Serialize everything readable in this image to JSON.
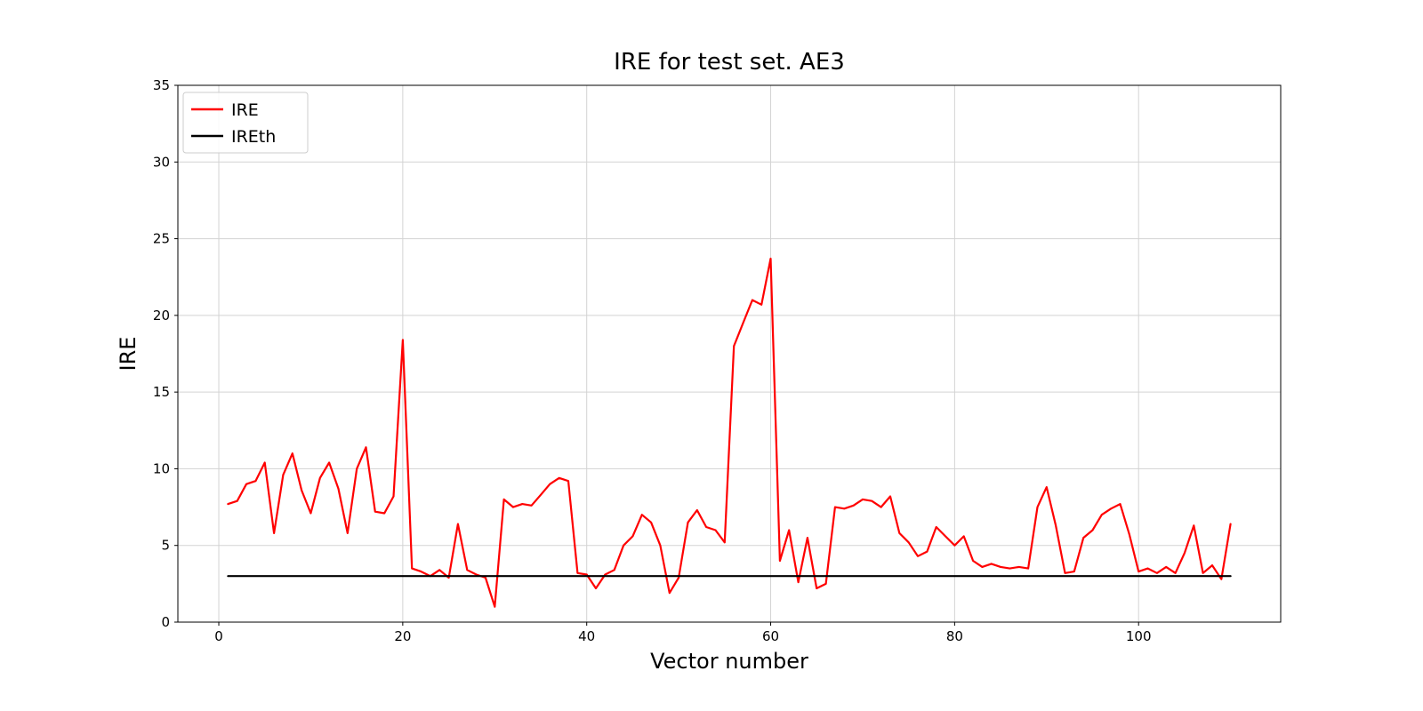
{
  "figure": {
    "background": "#ffffff"
  },
  "chart_data": {
    "type": "line",
    "title": "IRE for test set. AE3",
    "xlabel": "Vector number",
    "ylabel": "IRE",
    "xlim": [
      -4.45,
      115.45
    ],
    "ylim": [
      0,
      35
    ],
    "xticks": [
      0,
      20,
      40,
      60,
      80,
      100
    ],
    "yticks": [
      0,
      5,
      10,
      15,
      20,
      25,
      30,
      35
    ],
    "grid": true,
    "grid_color": "#d3d3d3",
    "spine_color": "#000000",
    "legend": {
      "location": "upper left",
      "entries": [
        "IRE",
        "IREth"
      ]
    },
    "series": [
      {
        "name": "IRE",
        "color": "#ff0000",
        "x_start": 1,
        "values": [
          7.7,
          7.9,
          9.0,
          9.2,
          10.4,
          5.8,
          9.6,
          11.0,
          8.6,
          7.1,
          9.4,
          10.4,
          8.7,
          5.8,
          10.0,
          11.4,
          7.2,
          7.1,
          8.2,
          18.4,
          3.5,
          3.3,
          3.0,
          3.4,
          2.9,
          6.4,
          3.4,
          3.1,
          2.9,
          1.0,
          8.0,
          7.5,
          7.7,
          7.6,
          8.3,
          9.0,
          9.4,
          9.2,
          3.2,
          3.1,
          2.2,
          3.1,
          3.4,
          5.0,
          5.6,
          7.0,
          6.5,
          5.0,
          1.9,
          2.9,
          6.5,
          7.3,
          6.2,
          6.0,
          5.2,
          18.0,
          19.5,
          21.0,
          20.7,
          23.7,
          4.0,
          6.0,
          2.6,
          5.5,
          2.2,
          2.5,
          7.5,
          7.4,
          7.6,
          8.0,
          7.9,
          7.5,
          8.2,
          5.8,
          5.2,
          4.3,
          4.6,
          6.2,
          5.6,
          5.0,
          5.6,
          4.0,
          3.6,
          3.8,
          3.6,
          3.5,
          3.6,
          3.5,
          7.5,
          8.8,
          6.3,
          3.2,
          3.3,
          5.5,
          6.0,
          7.0,
          7.4,
          7.7,
          5.7,
          3.3,
          3.5,
          3.2,
          3.6,
          3.2,
          4.5,
          6.3,
          3.2,
          3.7,
          2.8,
          6.4
        ]
      },
      {
        "name": "IREth",
        "color": "#000000",
        "x": [
          1,
          110
        ],
        "values": [
          3,
          3
        ]
      }
    ]
  }
}
